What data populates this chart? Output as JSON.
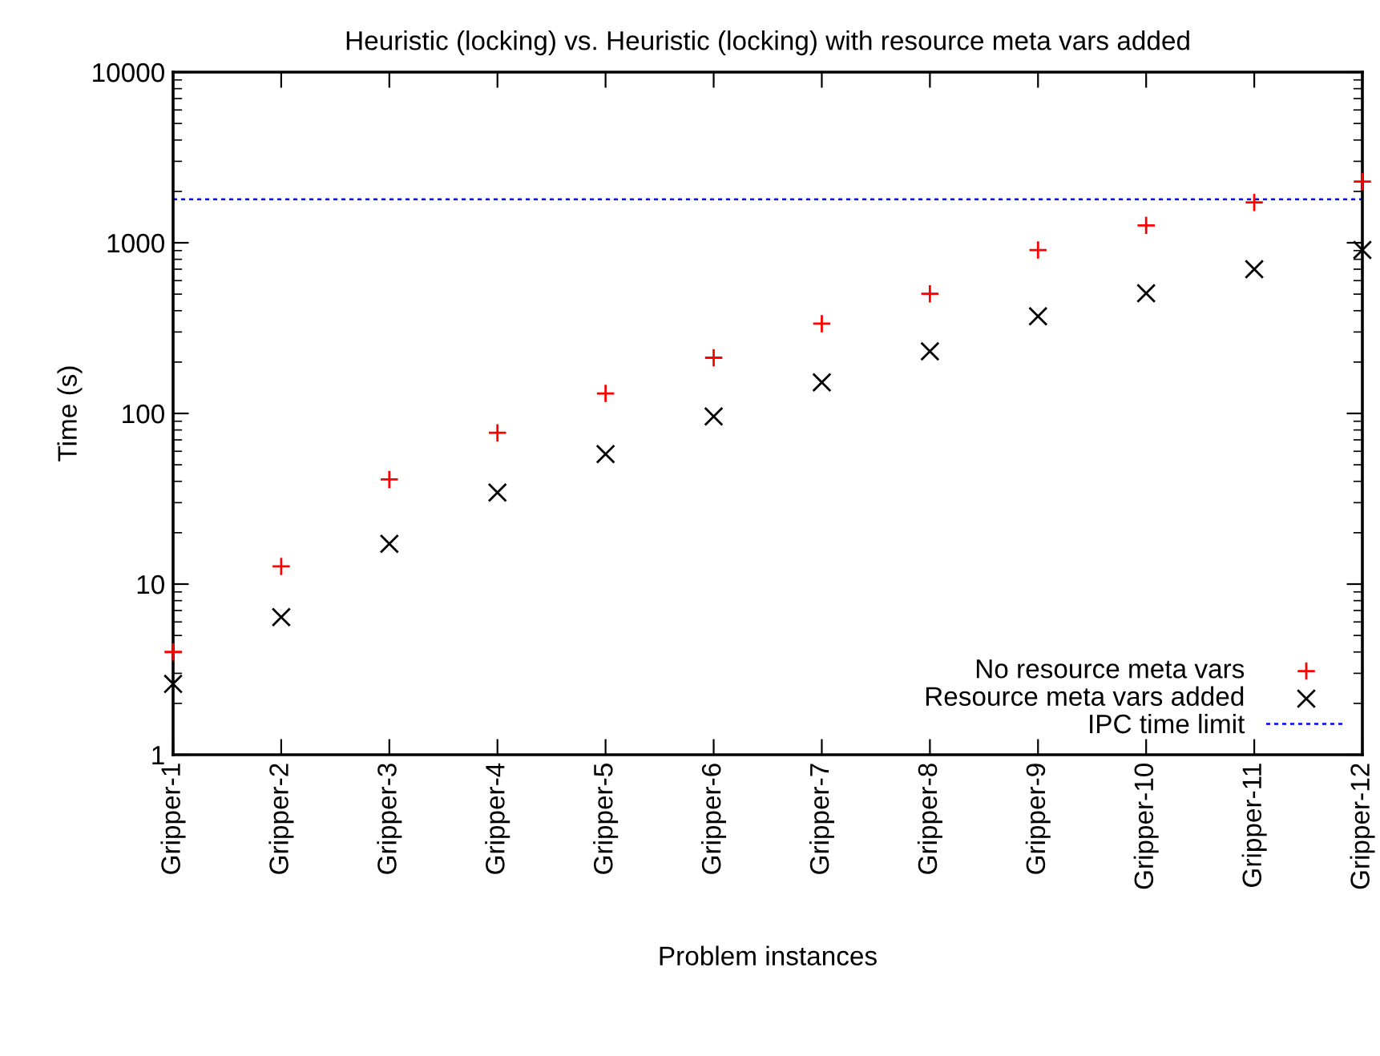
{
  "chart_data": {
    "type": "scatter",
    "title": "Heuristic (locking) vs. Heuristic (locking) with resource meta vars added",
    "xlabel": "Problem instances",
    "ylabel": "Time (s)",
    "categories": [
      "Gripper-1",
      "Gripper-2",
      "Gripper-3",
      "Gripper-4",
      "Gripper-5",
      "Gripper-6",
      "Gripper-7",
      "Gripper-8",
      "Gripper-9",
      "Gripper-10",
      "Gripper-11",
      "Gripper-12"
    ],
    "series": [
      {
        "name": "No resource meta vars",
        "color": "#ff0000",
        "marker": "cross",
        "values": [
          4.0,
          12.7,
          41,
          77,
          131,
          212,
          336,
          502,
          907,
          1264,
          1723,
          2282
        ]
      },
      {
        "name": "Resource meta vars added",
        "color": "#000000",
        "marker": "x",
        "values": [
          2.6,
          6.4,
          17.2,
          34.4,
          57.8,
          96,
          152,
          231,
          371,
          506,
          700,
          907
        ]
      }
    ],
    "ref_lines": [
      {
        "axis": "y",
        "value": 1800,
        "label": "IPC time limit",
        "color": "#0000ff",
        "line_style": "dotted"
      }
    ],
    "log": "y",
    "ylim": [
      1,
      10000
    ],
    "yticks": [
      1,
      10,
      100,
      1000,
      10000
    ],
    "grid": false,
    "legend": "bottom right"
  }
}
